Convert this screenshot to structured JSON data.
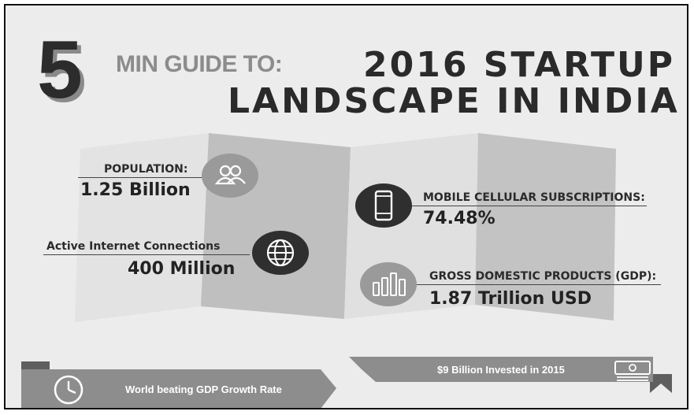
{
  "title": {
    "number": "5",
    "prefix": "MIN GUIDE TO:",
    "line1": "2016 STARTUP",
    "line2": "LANDSCAPE IN INDIA"
  },
  "stats": {
    "population": {
      "label": "POPULATION:",
      "value": "1.25 Billion",
      "icon": "people-icon"
    },
    "internet": {
      "label": "Active Internet Connections",
      "value": "400 Million",
      "icon": "globe-icon"
    },
    "mobile": {
      "label": "MOBILE CELLULAR SUBSCRIPTIONS:",
      "value": "74.48%",
      "icon": "mobile-phone-icon"
    },
    "gdp": {
      "label": "GROSS DOMESTIC PRODUCTS (GDP):",
      "value": "1.87 Trillion USD",
      "icon": "bar-chart-icon"
    }
  },
  "banners": {
    "investment": {
      "text": "$9 Billion Invested in 2015",
      "icon": "banknote-icon"
    },
    "growth": {
      "text": "World beating GDP Growth Rate",
      "icon": "clock-icon"
    }
  },
  "colors": {
    "background": "#ececec",
    "map_light": "#e2e2e2",
    "map_dark": "#bdbdbd",
    "icon_light": "#9a9a9a",
    "icon_dark": "#2f2f2f",
    "banner": "#8d8d8d",
    "banner_dark": "#5f5f5f"
  }
}
